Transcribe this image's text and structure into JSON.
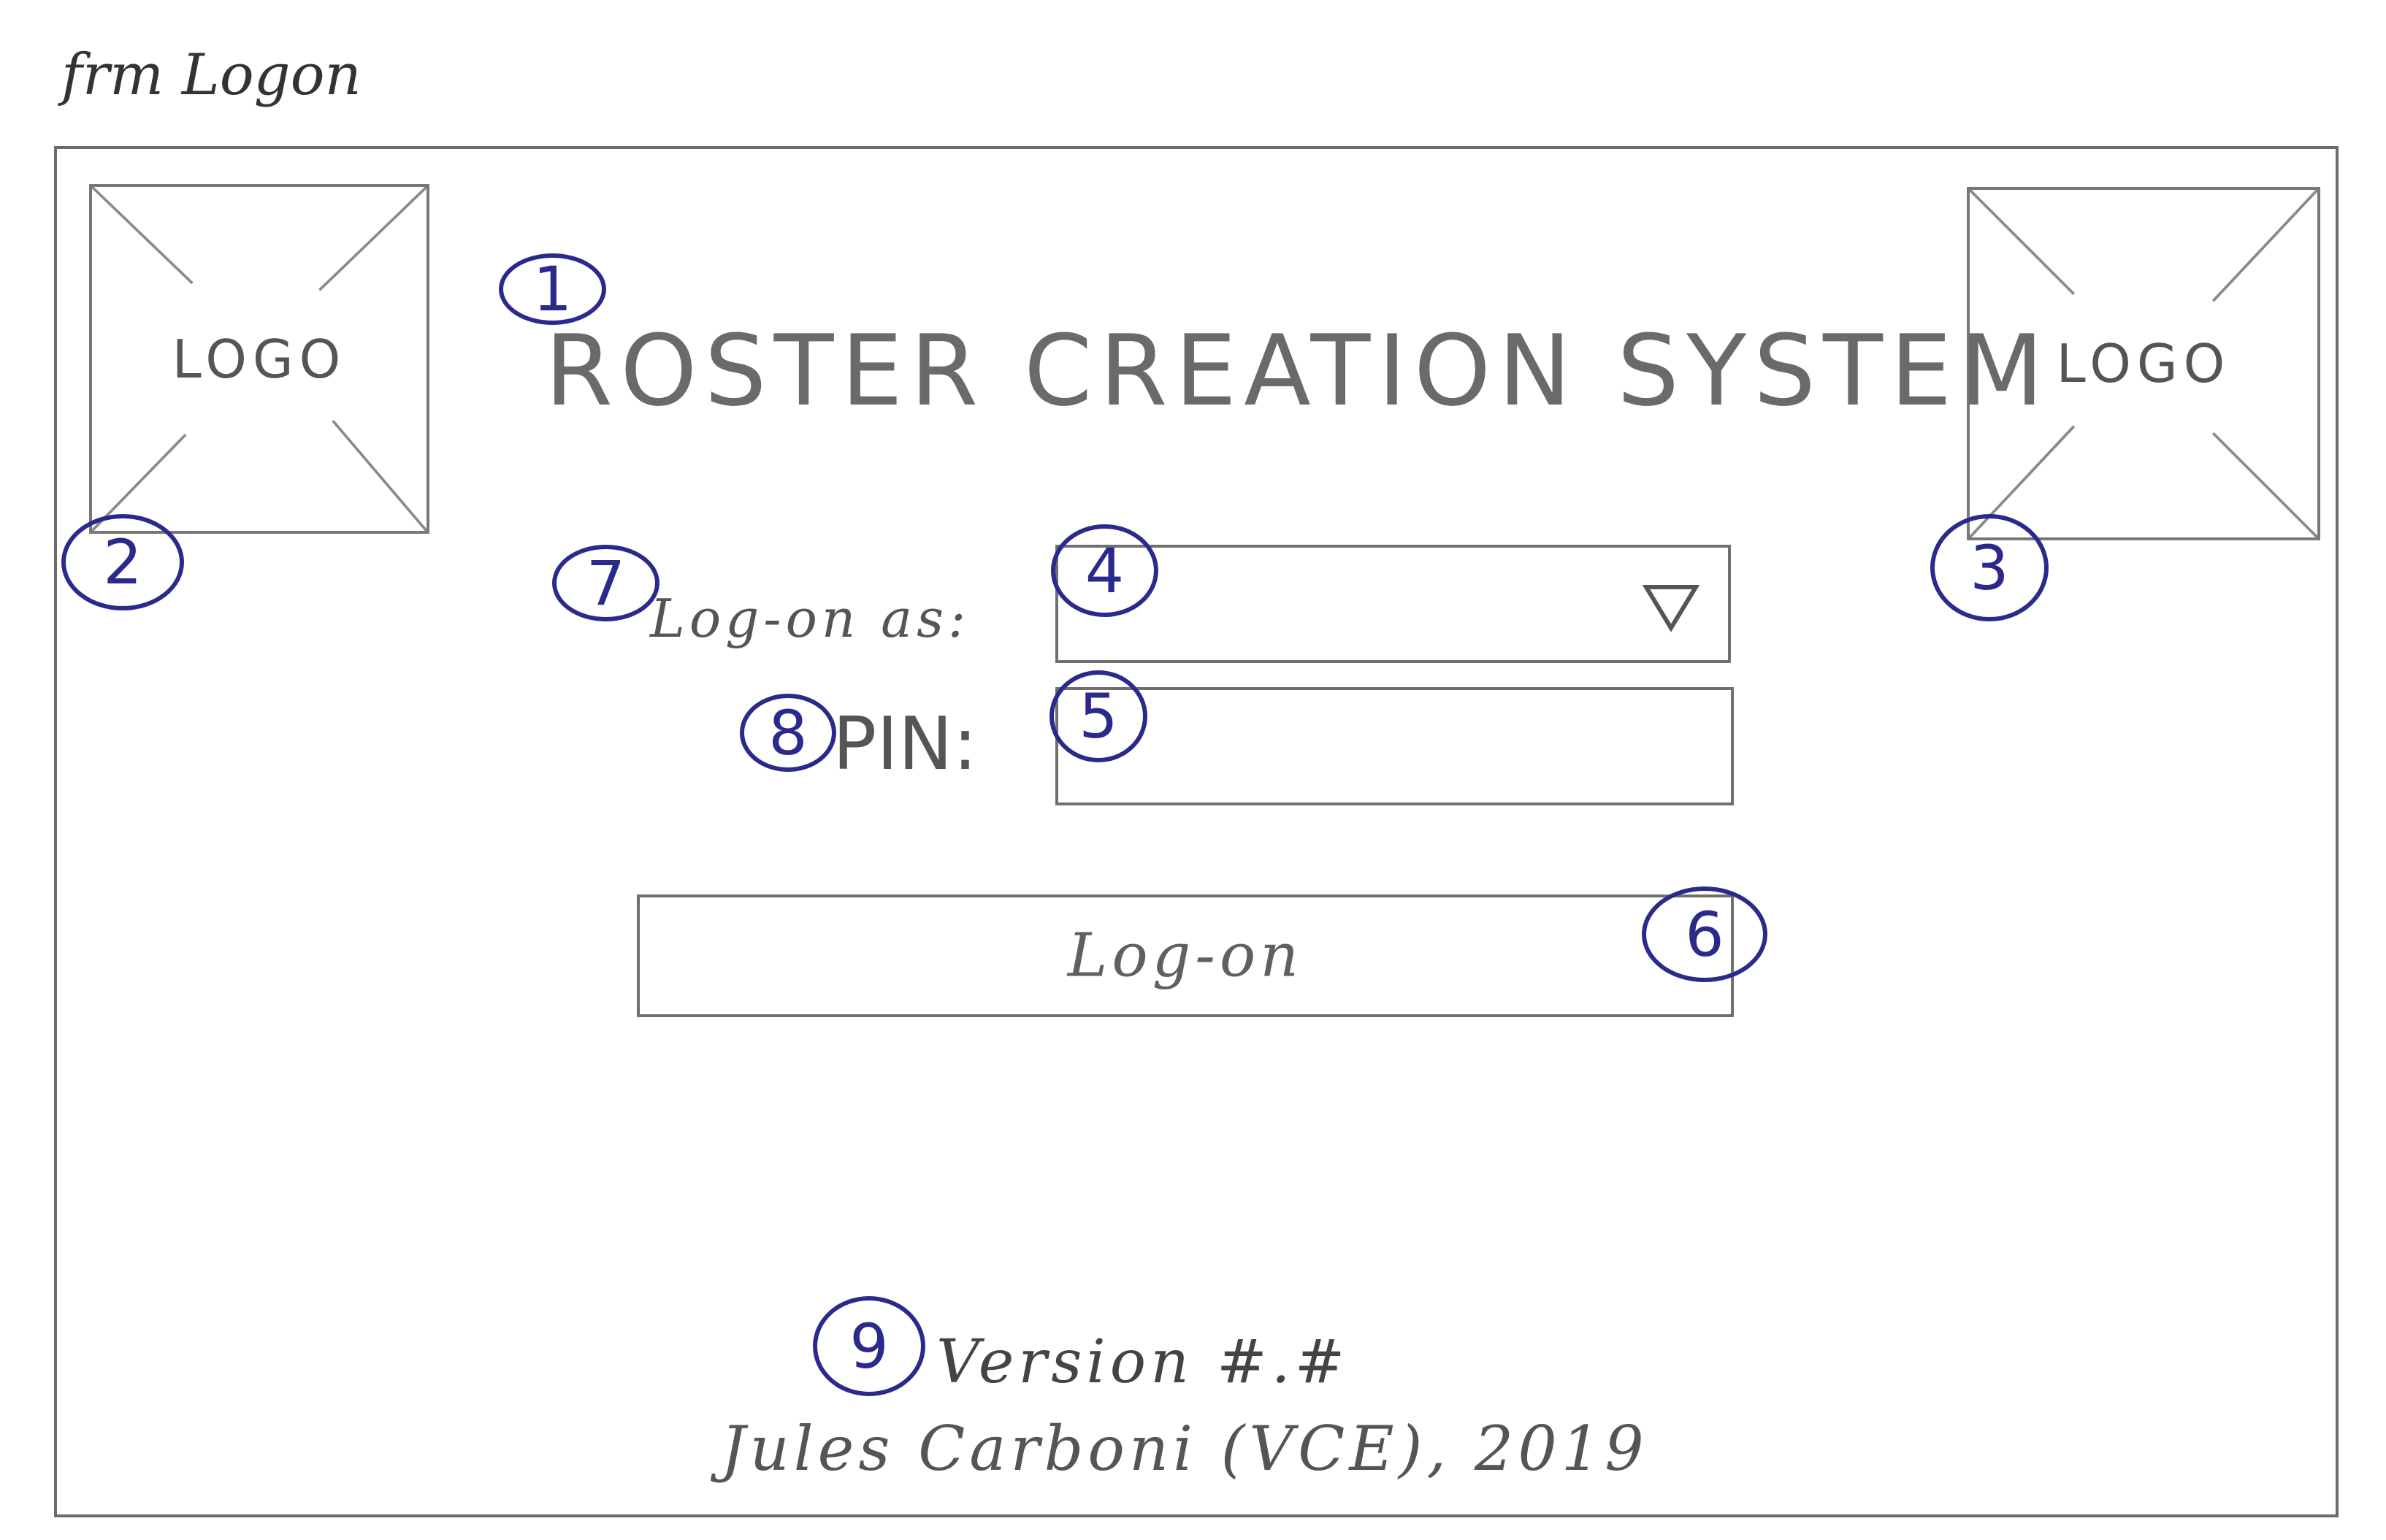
{
  "form": {
    "name": "frm Logon"
  },
  "logos": {
    "left_label": "LOGO",
    "right_label": "LOGO"
  },
  "title": "ROSTER CREATION SYSTEM",
  "login": {
    "logon_as_label": "Log-on as:",
    "logon_as_selected": "",
    "pin_label": "PIN:",
    "pin_value": "",
    "button_label": "Log-on"
  },
  "footer": {
    "version": "Version #.#",
    "author": "Jules Carboni (VCE), 2019"
  },
  "markers": [
    "1",
    "2",
    "3",
    "4",
    "5",
    "6",
    "7",
    "8",
    "9"
  ],
  "colors": {
    "pencil": "#555555",
    "marker_ink": "#2a2a8c"
  },
  "icons": {
    "dropdown": "triangle-down-icon",
    "logo_placeholder": "image-placeholder-icon"
  }
}
